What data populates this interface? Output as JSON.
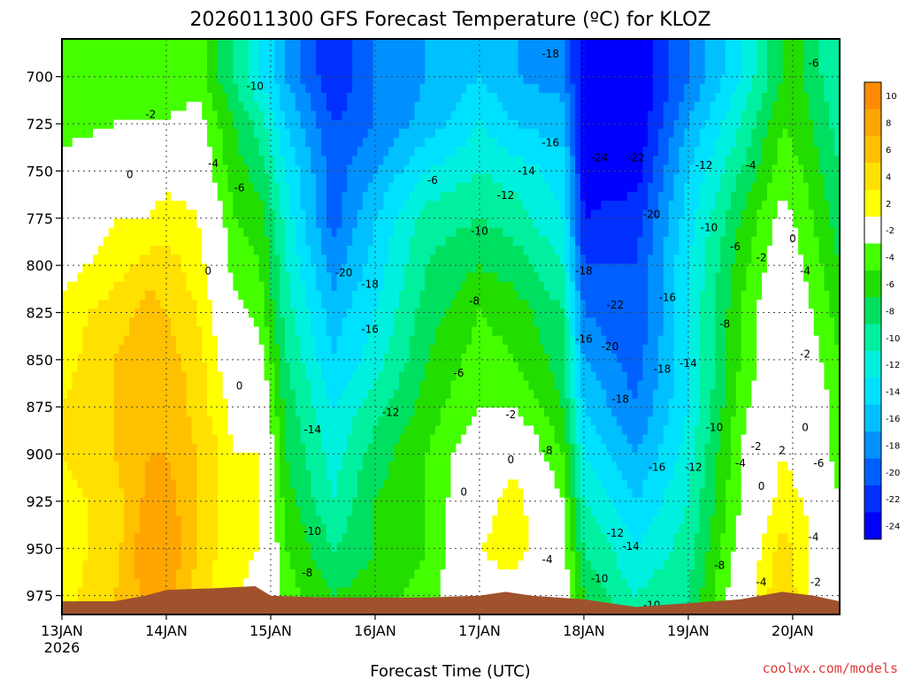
{
  "chart_data": {
    "type": "heatmap",
    "title": "2026011300 GFS Forecast Temperature (ºC) for KLOZ",
    "xlabel": "Forecast Time (UTC)",
    "ylabel": "",
    "credit": "coolwx.com/models",
    "x_ticks": [
      {
        "label": "13JAN",
        "sub": "2026",
        "day": 0
      },
      {
        "label": "14JAN",
        "day": 1
      },
      {
        "label": "15JAN",
        "day": 2
      },
      {
        "label": "16JAN",
        "day": 3
      },
      {
        "label": "17JAN",
        "day": 4
      },
      {
        "label": "18JAN",
        "day": 5
      },
      {
        "label": "19JAN",
        "day": 6
      },
      {
        "label": "20JAN",
        "day": 7
      }
    ],
    "xlim": [
      0,
      7.45
    ],
    "y_ticks": [
      "700",
      "725",
      "750",
      "775",
      "800",
      "825",
      "850",
      "875",
      "900",
      "925",
      "950",
      "975"
    ],
    "y_pressure": [
      700,
      725,
      750,
      775,
      800,
      825,
      850,
      875,
      900,
      925,
      950,
      975
    ],
    "ylim": [
      680,
      985
    ],
    "colorbar": {
      "levels": [
        "10",
        "8",
        "6",
        "4",
        "2",
        "-2",
        "-4",
        "-6",
        "-8",
        "-10",
        "-12",
        "-14",
        "-16",
        "-18",
        "-20",
        "-22",
        "-24"
      ],
      "colors": [
        "#ff8c00",
        "#ffa500",
        "#ffc000",
        "#ffe000",
        "#ffff00",
        "#ffffff",
        "#44ff00",
        "#22dd00",
        "#00e060",
        "#00f0a0",
        "#00f0e0",
        "#00e0ff",
        "#00c0ff",
        "#0090ff",
        "#0060ff",
        "#0030ff",
        "#0000ff"
      ]
    },
    "series": [
      {
        "x": 0.0,
        "t": [
          -4,
          -3,
          -1,
          0,
          1,
          3,
          3,
          4,
          4,
          3,
          3,
          3
        ]
      },
      {
        "x": 0.5,
        "t": [
          -4,
          -2,
          0,
          2,
          3,
          5,
          6,
          6,
          6,
          5,
          5,
          6
        ]
      },
      {
        "x": 0.85,
        "t": [
          -4,
          -2,
          1,
          2,
          5,
          7,
          7,
          7,
          8,
          9,
          10,
          9
        ]
      },
      {
        "x": 1.0,
        "t": [
          -3,
          -2,
          1,
          3,
          5,
          6,
          7,
          8,
          8,
          9,
          10,
          9
        ]
      },
      {
        "x": 1.3,
        "t": [
          -3,
          -1,
          1,
          2,
          3,
          4,
          5,
          5,
          6,
          6,
          6,
          5
        ]
      },
      {
        "x": 1.5,
        "t": [
          -6,
          -4,
          -3,
          -1,
          0,
          1,
          2,
          3,
          4,
          4,
          4,
          3
        ]
      },
      {
        "x": 1.65,
        "t": [
          -8,
          -6,
          -5,
          -4,
          -3,
          -1,
          0,
          1,
          2,
          3,
          3,
          2
        ]
      },
      {
        "x": 1.9,
        "t": [
          -12,
          -9,
          -7,
          -5,
          -4,
          -3,
          -1,
          1,
          2,
          2,
          2,
          1
        ]
      },
      {
        "x": 2.15,
        "t": [
          -16,
          -14,
          -12,
          -11,
          -10,
          -9,
          -8,
          -7,
          -6,
          -5,
          -4,
          -3
        ]
      },
      {
        "x": 2.6,
        "t": [
          -22,
          -20,
          -19,
          -19,
          -17,
          -15,
          -14,
          -12,
          -11,
          -10,
          -8,
          -6
        ]
      },
      {
        "x": 3.0,
        "t": [
          -18,
          -18,
          -16,
          -14,
          -13,
          -12,
          -11,
          -9,
          -7,
          -6,
          -6,
          -5
        ]
      },
      {
        "x": 3.5,
        "t": [
          -16,
          -15,
          -12,
          -9,
          -8,
          -7,
          -6,
          -5,
          -4,
          -4,
          -4,
          -3
        ]
      },
      {
        "x": 4.0,
        "t": [
          -14,
          -12,
          -10,
          -8,
          -6,
          -4,
          -3,
          -2,
          0,
          1,
          2,
          1
        ]
      },
      {
        "x": 4.35,
        "t": [
          -16,
          -14,
          -11,
          -9,
          -7,
          -5,
          -4,
          -2,
          1,
          3,
          3,
          1
        ]
      },
      {
        "x": 4.8,
        "t": [
          -17,
          -15,
          -13,
          -12,
          -10,
          -8,
          -7,
          -6,
          -4,
          -2,
          -1,
          0
        ]
      },
      {
        "x": 5.0,
        "t": [
          -24,
          -24,
          -23,
          -22,
          -20,
          -18,
          -16,
          -14,
          -12,
          -10,
          -8,
          -6
        ]
      },
      {
        "x": 5.5,
        "t": [
          -24,
          -24,
          -23,
          -21,
          -20,
          -20,
          -19,
          -18,
          -16,
          -14,
          -12,
          -10
        ]
      },
      {
        "x": 6.0,
        "t": [
          -18,
          -16,
          -14,
          -13,
          -12,
          -12,
          -12,
          -12,
          -11,
          -10,
          -9,
          -8
        ]
      },
      {
        "x": 6.5,
        "t": [
          -12,
          -10,
          -8,
          -6,
          -5,
          -4,
          -4,
          -3,
          -2,
          -2,
          -1,
          0
        ]
      },
      {
        "x": 6.9,
        "t": [
          -6,
          -4,
          -3,
          -1,
          0,
          1,
          1,
          2,
          2,
          3,
          5,
          6
        ]
      },
      {
        "x": 7.1,
        "t": [
          -6,
          -5,
          -4,
          -3,
          -2,
          -1,
          0,
          1,
          1,
          2,
          3,
          3
        ]
      },
      {
        "x": 7.45,
        "t": [
          -10,
          -9,
          -8,
          -7,
          -6,
          -5,
          -4,
          -3,
          -3,
          -2,
          -2,
          -2
        ]
      }
    ],
    "terrain": [
      {
        "x": 0.0,
        "p": 978
      },
      {
        "x": 0.5,
        "p": 978
      },
      {
        "x": 0.8,
        "p": 975
      },
      {
        "x": 1.0,
        "p": 972
      },
      {
        "x": 1.5,
        "p": 971
      },
      {
        "x": 1.85,
        "p": 970
      },
      {
        "x": 2.0,
        "p": 975
      },
      {
        "x": 2.5,
        "p": 976
      },
      {
        "x": 3.0,
        "p": 976
      },
      {
        "x": 3.5,
        "p": 976
      },
      {
        "x": 4.0,
        "p": 975
      },
      {
        "x": 4.25,
        "p": 973
      },
      {
        "x": 4.5,
        "p": 975
      },
      {
        "x": 5.0,
        "p": 977
      },
      {
        "x": 5.5,
        "p": 981
      },
      {
        "x": 6.0,
        "p": 979
      },
      {
        "x": 6.5,
        "p": 977
      },
      {
        "x": 6.9,
        "p": 973
      },
      {
        "x": 7.2,
        "p": 975
      },
      {
        "x": 7.45,
        "p": 978
      }
    ],
    "contour_labels": [
      {
        "text": "-18",
        "x": 4.68,
        "p": 688
      },
      {
        "text": "-10",
        "x": 1.85,
        "p": 705
      },
      {
        "text": "-16",
        "x": 4.68,
        "p": 735
      },
      {
        "text": "-24",
        "x": 5.15,
        "p": 743
      },
      {
        "text": "-22",
        "x": 5.5,
        "p": 743
      },
      {
        "text": "-12",
        "x": 6.15,
        "p": 747
      },
      {
        "text": "-4",
        "x": 6.6,
        "p": 747
      },
      {
        "text": "-6",
        "x": 7.2,
        "p": 693
      },
      {
        "text": "-2",
        "x": 0.85,
        "p": 720
      },
      {
        "text": "-4",
        "x": 1.45,
        "p": 746
      },
      {
        "text": "-6",
        "x": 1.7,
        "p": 759
      },
      {
        "text": "0",
        "x": 0.65,
        "p": 752
      },
      {
        "text": "-14",
        "x": 4.45,
        "p": 750
      },
      {
        "text": "-12",
        "x": 4.25,
        "p": 763
      },
      {
        "text": "-6",
        "x": 3.55,
        "p": 755
      },
      {
        "text": "-20",
        "x": 5.65,
        "p": 773
      },
      {
        "text": "-10",
        "x": 4.0,
        "p": 782
      },
      {
        "text": "-10",
        "x": 6.2,
        "p": 780
      },
      {
        "text": "-6",
        "x": 6.45,
        "p": 790
      },
      {
        "text": "0",
        "x": 7.0,
        "p": 786
      },
      {
        "text": "-2",
        "x": 6.7,
        "p": 796
      },
      {
        "text": "-4",
        "x": 7.12,
        "p": 803
      },
      {
        "text": "0",
        "x": 1.4,
        "p": 803
      },
      {
        "text": "-20",
        "x": 2.7,
        "p": 804
      },
      {
        "text": "-18",
        "x": 2.95,
        "p": 810
      },
      {
        "text": "-18",
        "x": 5.0,
        "p": 803
      },
      {
        "text": "-8",
        "x": 3.95,
        "p": 819
      },
      {
        "text": "-22",
        "x": 5.3,
        "p": 821
      },
      {
        "text": "-16",
        "x": 5.8,
        "p": 817
      },
      {
        "text": "-16",
        "x": 2.95,
        "p": 834
      },
      {
        "text": "-8",
        "x": 6.35,
        "p": 831
      },
      {
        "text": "-16",
        "x": 5.0,
        "p": 839
      },
      {
        "text": "-20",
        "x": 5.25,
        "p": 843
      },
      {
        "text": "-2",
        "x": 7.12,
        "p": 847
      },
      {
        "text": "-14",
        "x": 6.0,
        "p": 852
      },
      {
        "text": "-18",
        "x": 5.75,
        "p": 855
      },
      {
        "text": "-6",
        "x": 3.8,
        "p": 857
      },
      {
        "text": "0",
        "x": 1.7,
        "p": 864
      },
      {
        "text": "-18",
        "x": 5.35,
        "p": 871
      },
      {
        "text": "-12",
        "x": 3.15,
        "p": 878
      },
      {
        "text": "-2",
        "x": 4.3,
        "p": 879
      },
      {
        "text": "-14",
        "x": 2.4,
        "p": 887
      },
      {
        "text": "-10",
        "x": 6.25,
        "p": 886
      },
      {
        "text": "0",
        "x": 7.12,
        "p": 886
      },
      {
        "text": "-8",
        "x": 4.65,
        "p": 898
      },
      {
        "text": "-2",
        "x": 6.65,
        "p": 896
      },
      {
        "text": "2",
        "x": 6.9,
        "p": 898
      },
      {
        "text": "0",
        "x": 4.3,
        "p": 903
      },
      {
        "text": "-16",
        "x": 5.7,
        "p": 907
      },
      {
        "text": "-12",
        "x": 6.05,
        "p": 907
      },
      {
        "text": "-4",
        "x": 6.5,
        "p": 905
      },
      {
        "text": "-6",
        "x": 7.25,
        "p": 905
      },
      {
        "text": "0",
        "x": 6.7,
        "p": 917
      },
      {
        "text": "0",
        "x": 3.85,
        "p": 920
      },
      {
        "text": "-10",
        "x": 2.4,
        "p": 941
      },
      {
        "text": "-12",
        "x": 5.3,
        "p": 942
      },
      {
        "text": "-4",
        "x": 7.2,
        "p": 944
      },
      {
        "text": "-14",
        "x": 5.45,
        "p": 949
      },
      {
        "text": "-4",
        "x": 4.65,
        "p": 956
      },
      {
        "text": "-8",
        "x": 2.35,
        "p": 963
      },
      {
        "text": "-10",
        "x": 5.15,
        "p": 966
      },
      {
        "text": "-8",
        "x": 6.3,
        "p": 959
      },
      {
        "text": "-4",
        "x": 6.7,
        "p": 968
      },
      {
        "text": "-2",
        "x": 7.22,
        "p": 968
      },
      {
        "text": "-10",
        "x": 5.65,
        "p": 980
      }
    ]
  }
}
